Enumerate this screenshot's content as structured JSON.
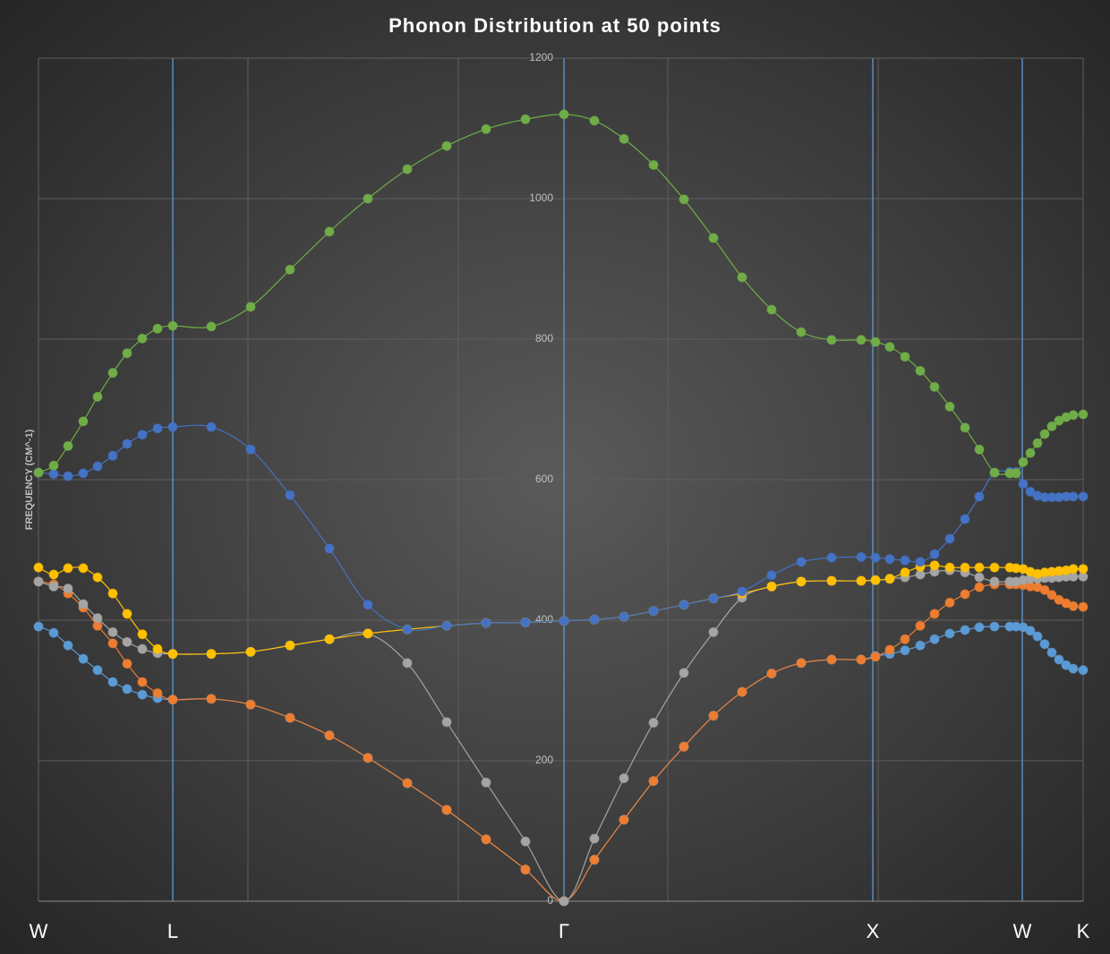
{
  "chart_data": {
    "type": "line",
    "title": "Phonon Distribution at 50 points",
    "y_label": "FREQUENCY (CM^-1)",
    "x": [
      0,
      17,
      33,
      50,
      66,
      83,
      99,
      116,
      133,
      150,
      193,
      237,
      281,
      325,
      368,
      412,
      456,
      500,
      544,
      587,
      621,
      654,
      687,
      721,
      754,
      786,
      819,
      852,
      886,
      919,
      935,
      951,
      968,
      985,
      1001,
      1018,
      1035,
      1051,
      1068,
      1085,
      1092,
      1100,
      1108,
      1116,
      1124,
      1132,
      1140,
      1148,
      1156,
      1167
    ],
    "xlim": [
      0,
      1167
    ],
    "xticks": [
      0,
      234,
      469,
      703,
      938,
      1167
    ],
    "ylim": [
      0,
      1200
    ],
    "yticks": [
      0,
      200,
      400,
      600,
      800,
      1000,
      1200
    ],
    "grid": true,
    "y_axis_at_x": 587,
    "symmetry_points": [
      {
        "label": "W",
        "x": 0
      },
      {
        "label": "L",
        "x": 150
      },
      {
        "label": "Γ",
        "x": 587
      },
      {
        "label": "X",
        "x": 932
      },
      {
        "label": "W",
        "x": 1099
      },
      {
        "label": "K",
        "x": 1167
      }
    ],
    "symmetry_line_color": "#5b9bd5",
    "series": [
      {
        "color": "#5b9bd5",
        "values": [
          391,
          382,
          364,
          345,
          329,
          312,
          302,
          294,
          289,
          287,
          288,
          280,
          261,
          236,
          204,
          168,
          130,
          88,
          45,
          0,
          59,
          116,
          171,
          220,
          264,
          298,
          324,
          339,
          344,
          344,
          349,
          352,
          357,
          364,
          373,
          381,
          386,
          390,
          391,
          391,
          391,
          390,
          385,
          377,
          366,
          354,
          344,
          336,
          331,
          329
        ]
      },
      {
        "color": "#ed7d31",
        "values": [
          455,
          451,
          438,
          418,
          392,
          367,
          338,
          312,
          296,
          287,
          288,
          280,
          261,
          236,
          204,
          168,
          130,
          88,
          45,
          0,
          59,
          116,
          171,
          220,
          264,
          298,
          324,
          339,
          344,
          344,
          348,
          358,
          373,
          392,
          409,
          425,
          437,
          447,
          451,
          451,
          451,
          450,
          448,
          447,
          443,
          436,
          429,
          424,
          420,
          419
        ]
      },
      {
        "color": "#a5a5a5",
        "values": [
          455,
          448,
          445,
          423,
          403,
          383,
          369,
          359,
          353,
          352,
          352,
          355,
          364,
          373,
          381,
          339,
          255,
          169,
          85,
          0,
          89,
          175,
          254,
          325,
          383,
          432,
          448,
          455,
          456,
          456,
          457,
          459,
          461,
          465,
          469,
          471,
          468,
          461,
          455,
          455,
          455,
          457,
          459,
          459,
          460,
          460,
          461,
          462,
          462,
          462
        ]
      },
      {
        "color": "#ffc000",
        "values": [
          475,
          465,
          474,
          474,
          461,
          438,
          409,
          380,
          359,
          352,
          352,
          355,
          364,
          373,
          381,
          387,
          392,
          396,
          397,
          399,
          401,
          405,
          413,
          422,
          431,
          438,
          448,
          455,
          456,
          456,
          457,
          459,
          468,
          476,
          478,
          475,
          475,
          475,
          475,
          475,
          474,
          473,
          469,
          466,
          468,
          469,
          470,
          471,
          473,
          473
        ]
      },
      {
        "color": "#4472c4",
        "values": [
          610,
          608,
          605,
          609,
          619,
          634,
          651,
          664,
          673,
          675,
          675,
          643,
          578,
          502,
          422,
          387,
          392,
          396,
          397,
          399,
          401,
          405,
          413,
          422,
          431,
          441,
          464,
          483,
          489,
          490,
          489,
          487,
          485,
          483,
          494,
          516,
          544,
          576,
          610,
          611,
          611,
          594,
          583,
          577,
          575,
          575,
          575,
          576,
          576,
          576
        ]
      },
      {
        "color": "#70ad47",
        "values": [
          610,
          620,
          648,
          683,
          718,
          752,
          780,
          801,
          815,
          819,
          818,
          846,
          899,
          953,
          1000,
          1042,
          1075,
          1099,
          1113,
          1120,
          1111,
          1085,
          1048,
          999,
          944,
          888,
          842,
          810,
          799,
          799,
          796,
          789,
          775,
          755,
          732,
          704,
          674,
          643,
          610,
          609,
          609,
          625,
          638,
          652,
          665,
          676,
          684,
          689,
          692,
          693
        ]
      }
    ]
  }
}
